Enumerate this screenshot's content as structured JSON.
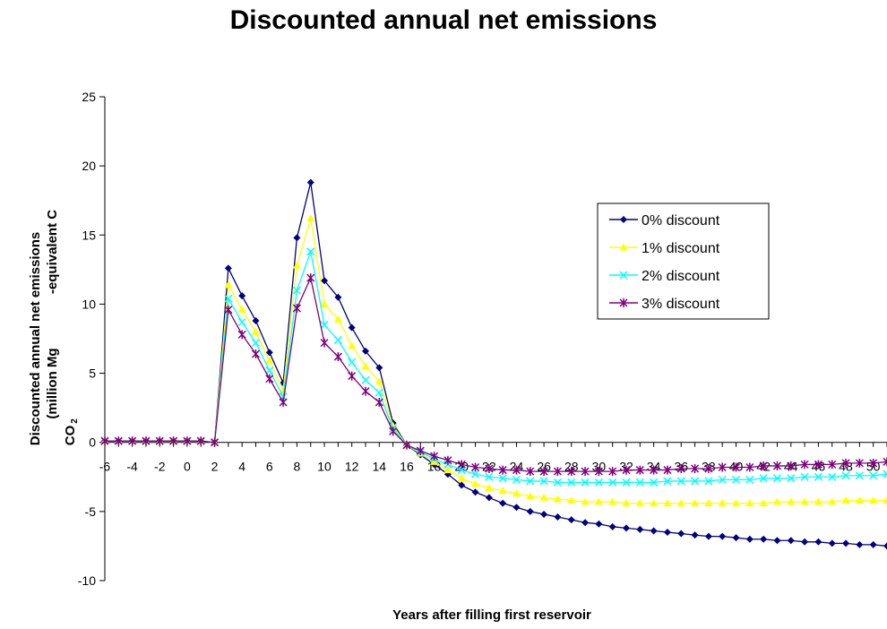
{
  "chart_data": {
    "type": "line",
    "title": "Discounted annual net emissions",
    "xlabel": "Years after filling first reservoir",
    "ylabel_line1": "Discounted annual net emissions",
    "ylabel_line2": "(million Mg",
    "ylabel_line3": "-equivalent C",
    "ylabel_co2": "CO",
    "ylabel_sub": "2",
    "xlim": [
      -6,
      51
    ],
    "ylim": [
      -10,
      25
    ],
    "y_ticks": [
      -10,
      -5,
      0,
      5,
      10,
      15,
      20,
      25
    ],
    "x_ticks": [
      -6,
      -4,
      -2,
      0,
      2,
      4,
      6,
      8,
      10,
      12,
      14,
      16,
      18,
      20,
      22,
      24,
      26,
      28,
      30,
      32,
      34,
      36,
      38,
      40,
      42,
      44,
      46,
      48,
      50
    ],
    "legend_position": "right",
    "x": [
      -6,
      -5,
      -4,
      -3,
      -2,
      -1,
      0,
      1,
      2,
      3,
      4,
      5,
      6,
      7,
      8,
      9,
      10,
      11,
      12,
      13,
      14,
      15,
      16,
      17,
      18,
      19,
      20,
      21,
      22,
      23,
      24,
      25,
      26,
      27,
      28,
      29,
      30,
      31,
      32,
      33,
      34,
      35,
      36,
      37,
      38,
      39,
      40,
      41,
      42,
      43,
      44,
      45,
      46,
      47,
      48,
      49,
      50,
      51
    ],
    "series": [
      {
        "name": "0% discount",
        "color": "#000080",
        "marker": "diamond",
        "values": [
          0.1,
          0.1,
          0.1,
          0.1,
          0.1,
          0.1,
          0.1,
          0.1,
          0,
          12.6,
          10.6,
          8.8,
          6.5,
          4.3,
          14.8,
          18.8,
          11.7,
          10.5,
          8.3,
          6.6,
          5.4,
          1.4,
          -0.2,
          -0.9,
          -1.6,
          -2.3,
          -3.1,
          -3.6,
          -4.0,
          -4.4,
          -4.7,
          -5.0,
          -5.2,
          -5.4,
          -5.6,
          -5.8,
          -5.9,
          -6.1,
          -6.2,
          -6.3,
          -6.4,
          -6.5,
          -6.6,
          -6.7,
          -6.8,
          -6.8,
          -6.9,
          -7.0,
          -7.0,
          -7.1,
          -7.1,
          -7.2,
          -7.2,
          -7.3,
          -7.3,
          -7.4,
          -7.4,
          -7.5
        ]
      },
      {
        "name": "1% discount",
        "color": "#ffff00",
        "marker": "triangle",
        "values": [
          0.1,
          0.1,
          0.1,
          0.1,
          0.1,
          0.1,
          0.1,
          0.1,
          0,
          11.4,
          9.6,
          8.0,
          5.9,
          3.8,
          12.8,
          16.2,
          10.0,
          8.9,
          7.0,
          5.5,
          4.4,
          1.2,
          -0.2,
          -0.8,
          -1.4,
          -2.0,
          -2.6,
          -3.0,
          -3.3,
          -3.5,
          -3.7,
          -3.9,
          -4.0,
          -4.1,
          -4.2,
          -4.3,
          -4.3,
          -4.3,
          -4.4,
          -4.4,
          -4.4,
          -4.4,
          -4.4,
          -4.4,
          -4.4,
          -4.4,
          -4.4,
          -4.4,
          -4.4,
          -4.3,
          -4.3,
          -4.3,
          -4.3,
          -4.3,
          -4.2,
          -4.2,
          -4.2,
          -4.2
        ]
      },
      {
        "name": "2% discount",
        "color": "#00ffff",
        "marker": "x",
        "values": [
          0.1,
          0.1,
          0.1,
          0.1,
          0.1,
          0.1,
          0.1,
          0.1,
          0,
          10.4,
          8.7,
          7.2,
          5.2,
          3.3,
          11.0,
          13.8,
          8.5,
          7.4,
          5.8,
          4.5,
          3.6,
          1.0,
          -0.2,
          -0.7,
          -1.2,
          -1.6,
          -2.0,
          -2.3,
          -2.5,
          -2.6,
          -2.7,
          -2.8,
          -2.8,
          -2.9,
          -2.9,
          -2.9,
          -2.9,
          -2.9,
          -2.9,
          -2.9,
          -2.9,
          -2.8,
          -2.8,
          -2.8,
          -2.8,
          -2.7,
          -2.7,
          -2.7,
          -2.6,
          -2.6,
          -2.6,
          -2.5,
          -2.5,
          -2.5,
          -2.4,
          -2.4,
          -2.4,
          -2.3
        ]
      },
      {
        "name": "3% discount",
        "color": "#800080",
        "marker": "star",
        "values": [
          0.1,
          0.1,
          0.1,
          0.1,
          0.1,
          0.1,
          0.1,
          0.1,
          0,
          9.6,
          7.8,
          6.4,
          4.6,
          2.9,
          9.7,
          11.9,
          7.2,
          6.2,
          4.8,
          3.7,
          2.9,
          0.8,
          -0.2,
          -0.6,
          -1.0,
          -1.3,
          -1.6,
          -1.8,
          -1.9,
          -2.0,
          -2.0,
          -2.1,
          -2.1,
          -2.1,
          -2.1,
          -2.1,
          -2.1,
          -2.1,
          -2.0,
          -2.0,
          -2.0,
          -2.0,
          -1.9,
          -1.9,
          -1.9,
          -1.8,
          -1.8,
          -1.8,
          -1.7,
          -1.7,
          -1.7,
          -1.6,
          -1.6,
          -1.6,
          -1.5,
          -1.5,
          -1.5,
          -1.4
        ]
      }
    ]
  }
}
